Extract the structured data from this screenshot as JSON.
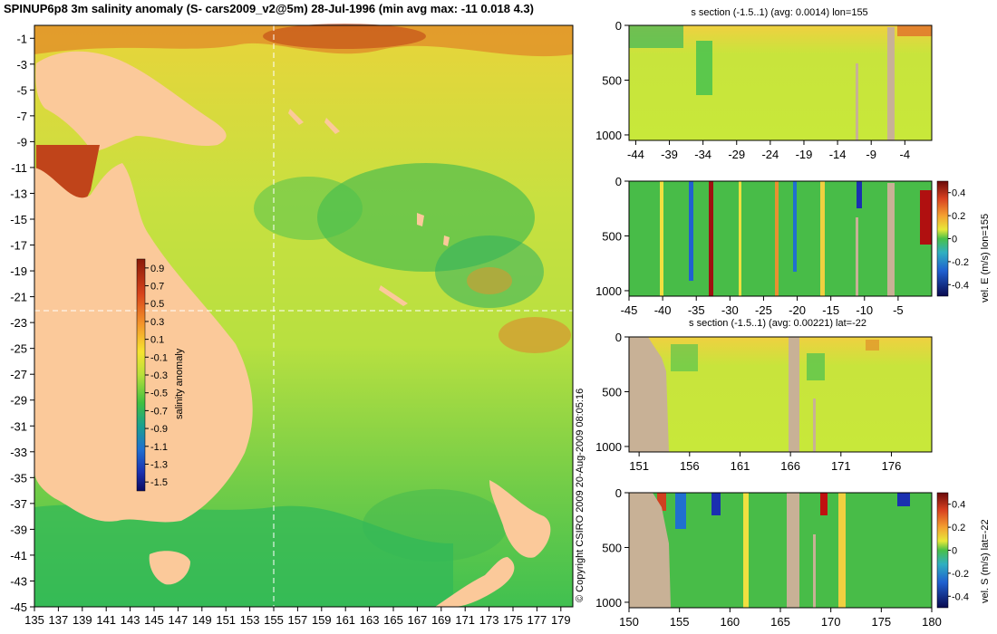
{
  "title": "SPINUP6p8 3m salinity anomaly (S- cars2009_v2@5m) 28-Jul-1996 (min avg max: -11 0.018 4.3)",
  "copyright": "© Copyright CSIRO 2009   20-Aug-2009 08:05:16",
  "colors": {
    "land": "#fbc99a",
    "section_land": "#c8b196",
    "ocean_mid": "#c8e83a",
    "guide": "#ffffff"
  },
  "chart_data": [
    {
      "type": "heatmap",
      "title": "",
      "xlabel": "",
      "ylabel": "",
      "x_ticks": [
        "135",
        "137",
        "139",
        "141",
        "143",
        "145",
        "147",
        "149",
        "151",
        "153",
        "155",
        "157",
        "159",
        "161",
        "163",
        "165",
        "167",
        "169",
        "171",
        "173",
        "175",
        "177",
        "179"
      ],
      "y_ticks": [
        "-1",
        "-3",
        "-5",
        "-7",
        "-9",
        "-11",
        "-13",
        "-15",
        "-17",
        "-19",
        "-21",
        "-23",
        "-25",
        "-27",
        "-29",
        "-31",
        "-33",
        "-35",
        "-37",
        "-39",
        "-41",
        "-43",
        "-45"
      ],
      "xlim": [
        135,
        180
      ],
      "ylim": [
        -45,
        0
      ],
      "crosshair": {
        "lon": 155,
        "lat": -22
      },
      "colorbar": {
        "label": "salinity anomaly",
        "ticks": [
          "0.9",
          "0.7",
          "0.5",
          "0.3",
          "0.1",
          "-0.1",
          "-0.3",
          "-0.5",
          "-0.7",
          "-0.9",
          "-1.1",
          "-1.3",
          "-1.5"
        ],
        "range": [
          -1.6,
          1.0
        ]
      }
    },
    {
      "type": "heatmap",
      "title": "s section (-1.5..1) (avg: 0.0014) lon=155",
      "x_ticks": [
        "-44",
        "-39",
        "-34",
        "-29",
        "-24",
        "-19",
        "-14",
        "-9",
        "-4"
      ],
      "y_ticks": [
        "0",
        "500",
        "1000"
      ],
      "xlim": [
        -45,
        0
      ],
      "ylim": [
        1050,
        0
      ]
    },
    {
      "type": "heatmap",
      "title": "",
      "x_ticks": [
        "-45",
        "-40",
        "-35",
        "-30",
        "-25",
        "-20",
        "-15",
        "-10",
        "-5"
      ],
      "y_ticks": [
        "0",
        "500",
        "1000"
      ],
      "xlim": [
        -45,
        0
      ],
      "ylim": [
        1050,
        0
      ],
      "colorbar": {
        "label": "vel. E (m/s) lon=155",
        "ticks": [
          "0.4",
          "0.2",
          "0",
          "-0.2",
          "-0.4"
        ],
        "range": [
          -0.5,
          0.5
        ]
      }
    },
    {
      "type": "heatmap",
      "title": "s section (-1.5..1) (avg: 0.00221) lat=-22",
      "x_ticks": [
        "151",
        "156",
        "161",
        "166",
        "171",
        "176"
      ],
      "y_ticks": [
        "0",
        "500",
        "1000"
      ],
      "xlim": [
        150,
        180
      ],
      "ylim": [
        1050,
        0
      ]
    },
    {
      "type": "heatmap",
      "title": "",
      "x_ticks": [
        "150",
        "155",
        "160",
        "165",
        "170",
        "175",
        "180"
      ],
      "y_ticks": [
        "0",
        "500",
        "1000"
      ],
      "xlim": [
        150,
        180
      ],
      "ylim": [
        1050,
        0
      ],
      "colorbar": {
        "label": "vel. S (m/s) lat=-22",
        "ticks": [
          "0.4",
          "0.2",
          "0",
          "-0.2",
          "-0.4"
        ],
        "range": [
          -0.5,
          0.5
        ]
      }
    }
  ]
}
